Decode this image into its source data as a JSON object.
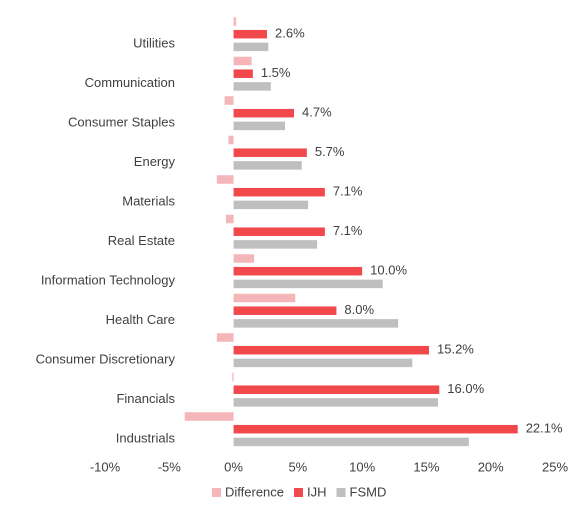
{
  "chart_data": {
    "type": "bar",
    "orientation": "horizontal",
    "categories": [
      "Utilities",
      "Communication",
      "Consumer Staples",
      "Energy",
      "Materials",
      "Real Estate",
      "Information Technology",
      "Health Care",
      "Consumer Discretionary",
      "Financials",
      "Industrials"
    ],
    "series": [
      {
        "name": "Difference",
        "color": "#f4b6b8",
        "values": [
          0.2,
          1.4,
          -0.7,
          -0.4,
          -1.3,
          -0.6,
          1.6,
          4.8,
          -1.3,
          -0.1,
          -3.8
        ]
      },
      {
        "name": "IJH",
        "color": "#f0484b",
        "values": [
          2.6,
          1.5,
          4.7,
          5.7,
          7.1,
          7.1,
          10.0,
          8.0,
          15.2,
          16.0,
          22.1
        ],
        "value_labels": [
          "2.6%",
          "1.5%",
          "4.7%",
          "5.7%",
          "7.1%",
          "7.1%",
          "10.0%",
          "8.0%",
          "15.2%",
          "16.0%",
          "22.1%"
        ]
      },
      {
        "name": "FSMD",
        "color": "#bfbfbf",
        "values": [
          2.7,
          2.9,
          4.0,
          5.3,
          5.8,
          6.5,
          11.6,
          12.8,
          13.9,
          15.9,
          18.3
        ]
      }
    ],
    "xlim": [
      -10,
      25
    ],
    "xticks": [
      {
        "value": -10,
        "label": "-10%"
      },
      {
        "value": -5,
        "label": "-5%"
      },
      {
        "value": 0,
        "label": "0%"
      },
      {
        "value": 5,
        "label": "5%"
      },
      {
        "value": 10,
        "label": "10%"
      },
      {
        "value": 15,
        "label": "15%"
      },
      {
        "value": 20,
        "label": "20%"
      },
      {
        "value": 25,
        "label": "25%"
      }
    ],
    "grid": false,
    "legend": "bottom"
  }
}
